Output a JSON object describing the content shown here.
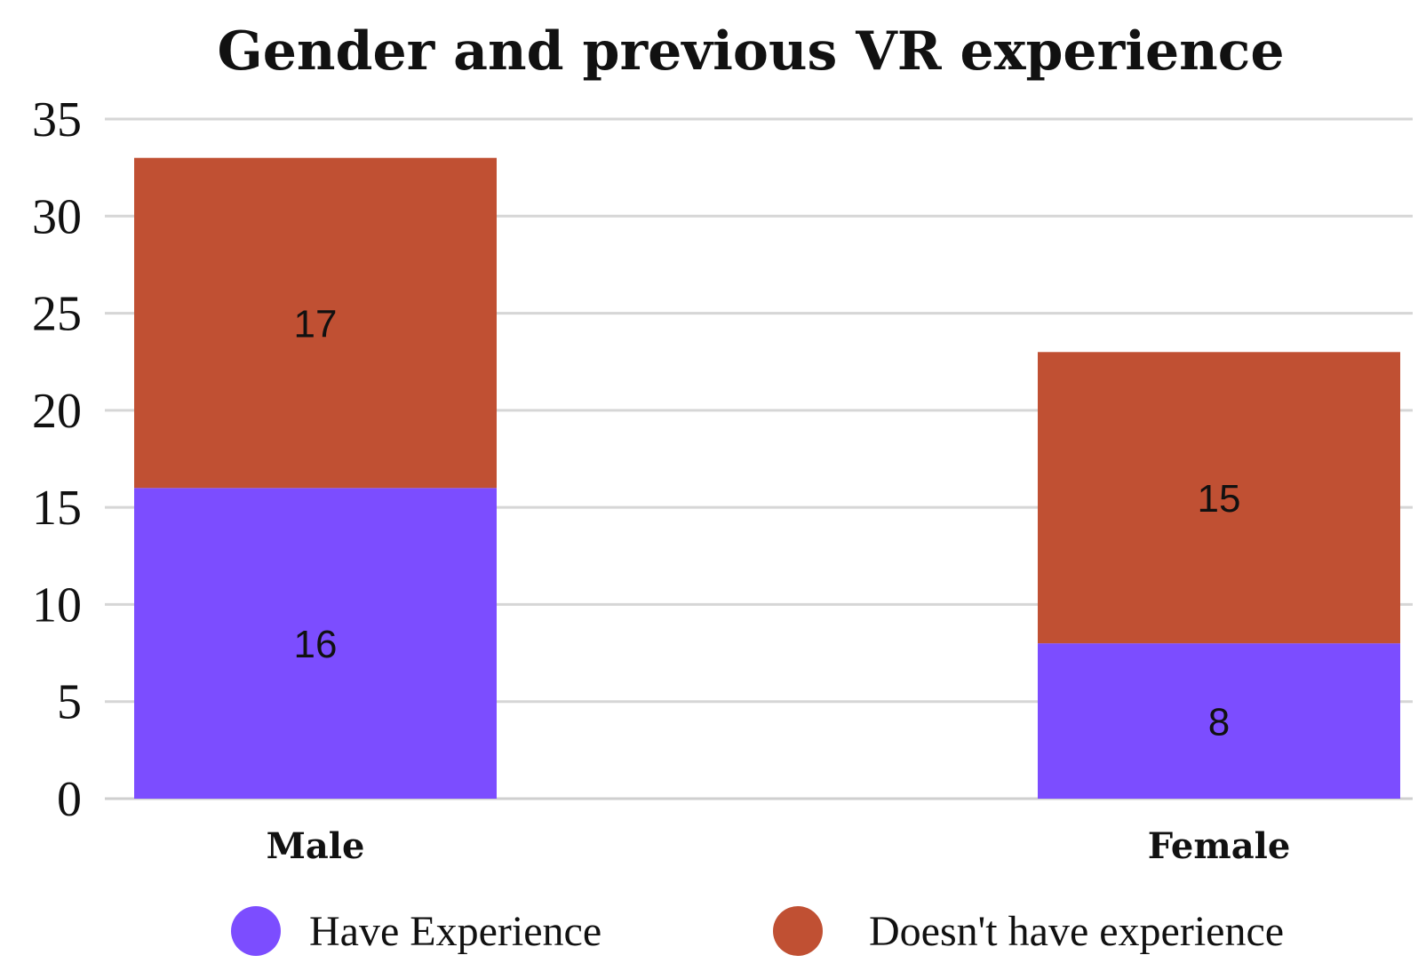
{
  "chart_data": {
    "type": "bar",
    "stacked": true,
    "title": "Gender and previous VR experience",
    "categories": [
      "Male",
      "Female"
    ],
    "series": [
      {
        "name": "Have Experience",
        "values": [
          16,
          8
        ],
        "color": "#7c4dff"
      },
      {
        "name": "Doesn't have experience",
        "values": [
          17,
          15
        ],
        "color": "#c05033"
      }
    ],
    "yticks": [
      0,
      5,
      10,
      15,
      20,
      25,
      30,
      35
    ],
    "ylim": [
      0,
      35
    ],
    "xlabel": "",
    "ylabel": "",
    "grid": true,
    "legend": "bottom"
  }
}
